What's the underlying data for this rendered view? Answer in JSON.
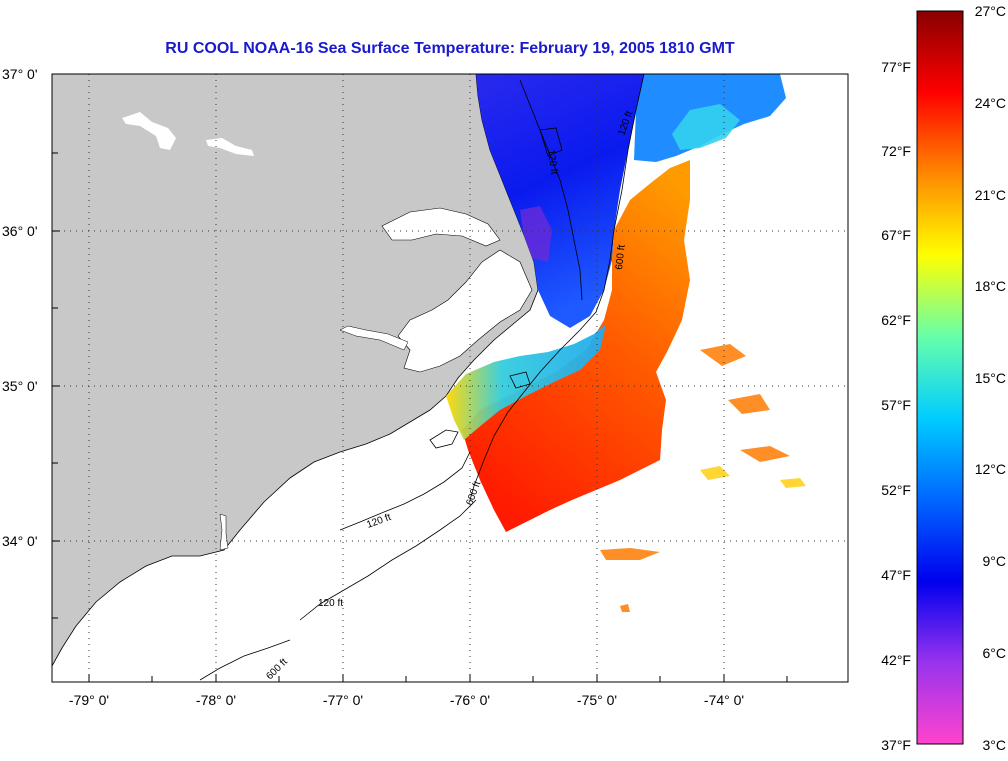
{
  "title": "RU COOL  NOAA-16  Sea Surface Temperature:  February 19, 2005 1810 GMT",
  "colors": {
    "land": "#c8c8c8",
    "title": "#1a1acc",
    "grid": "#333333",
    "colormap": [
      "#ff44cc",
      "#9933ee",
      "#0000ee",
      "#0066ff",
      "#00ccff",
      "#66ffaa",
      "#ffff00",
      "#ff8800",
      "#ff0000",
      "#880000"
    ]
  },
  "map": {
    "latitude_labels": [
      "37° 0'",
      "36° 0'",
      "35° 0'",
      "34° 0'"
    ],
    "longitude_labels": [
      "-79° 0'",
      "-78° 0'",
      "-77° 0'",
      "-76° 0'",
      "-75° 0'",
      "-74° 0'"
    ],
    "isobaths": [
      {
        "label": "120 ft"
      },
      {
        "label": "600 ft"
      },
      {
        "label": "120 ft"
      },
      {
        "label": "600 ft"
      },
      {
        "label": "120 ft"
      },
      {
        "label": "120 ft"
      },
      {
        "label": "600 ft"
      }
    ]
  },
  "colorbar": {
    "min_c": 3,
    "max_c": 27,
    "celsius_labels": [
      "27°C",
      "24°C",
      "21°C",
      "18°C",
      "15°C",
      "12°C",
      "9°C",
      "6°C",
      "3°C"
    ],
    "fahrenheit_labels": [
      "77°F",
      "72°F",
      "67°F",
      "62°F",
      "57°F",
      "52°F",
      "47°F",
      "42°F",
      "37°F"
    ]
  }
}
